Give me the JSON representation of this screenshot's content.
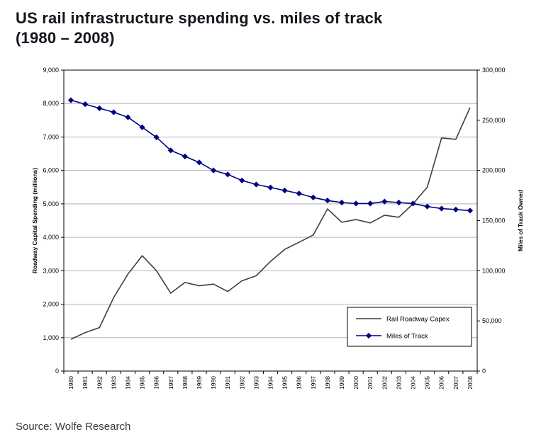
{
  "title": {
    "line1": "US rail infrastructure spending vs. miles of track",
    "line2": "(1980 – 2008)"
  },
  "source": "Source: Wolfe Research",
  "chart_data": {
    "type": "line",
    "title": "US rail infrastructure spending vs. miles of track (1980 – 2008)",
    "categories": [
      "1980",
      "1981",
      "1982",
      "1983",
      "1984",
      "1985",
      "1986",
      "1987",
      "1988",
      "1989",
      "1990",
      "1991",
      "1992",
      "1993",
      "1994",
      "1995",
      "1996",
      "1997",
      "1998",
      "1999",
      "2000",
      "2001",
      "2002",
      "2003",
      "2004",
      "2005",
      "2006",
      "2007",
      "2008"
    ],
    "series": [
      {
        "name": "Rail Roadway Capex",
        "axis": "left",
        "color": "#3f3f3f",
        "marker": "none",
        "values": [
          950,
          1150,
          1300,
          2200,
          2900,
          3450,
          3000,
          2330,
          2650,
          2550,
          2600,
          2380,
          2700,
          2850,
          3280,
          3640,
          3850,
          4070,
          4850,
          4450,
          4530,
          4430,
          4660,
          4600,
          5000,
          5500,
          6970,
          6930,
          7880
        ]
      },
      {
        "name": "Miles of Track",
        "axis": "right",
        "color": "#000080",
        "marker": "diamond",
        "values": [
          270000,
          266000,
          262000,
          258000,
          253000,
          243000,
          233000,
          220000,
          214000,
          208000,
          200000,
          196000,
          190000,
          186000,
          183000,
          180000,
          177000,
          173000,
          170000,
          168000,
          167000,
          167000,
          169000,
          168000,
          167000,
          164000,
          162000,
          161000,
          160000
        ]
      }
    ],
    "left_axis": {
      "title": "Roadway Capital Spending (millions)",
      "min": 0,
      "max": 9000,
      "step": 1000,
      "tick_labels": [
        "0",
        "1,000",
        "2,000",
        "3,000",
        "4,000",
        "5,000",
        "6,000",
        "7,000",
        "8,000",
        "9,000"
      ]
    },
    "right_axis": {
      "title": "Miles of Track Owned",
      "min": 0,
      "max": 300000,
      "step": 50000,
      "tick_labels": [
        "0",
        "50,000",
        "100,000",
        "150,000",
        "200,000",
        "250,000",
        "300,000"
      ]
    },
    "legend": {
      "position": "inside-right",
      "entries": [
        "Rail Roadway Capex",
        "Miles of Track"
      ]
    },
    "grid": "horizontal",
    "colors": {
      "grid": "#b3b3b3",
      "axis": "#000000",
      "plot_border": "#000000"
    }
  }
}
